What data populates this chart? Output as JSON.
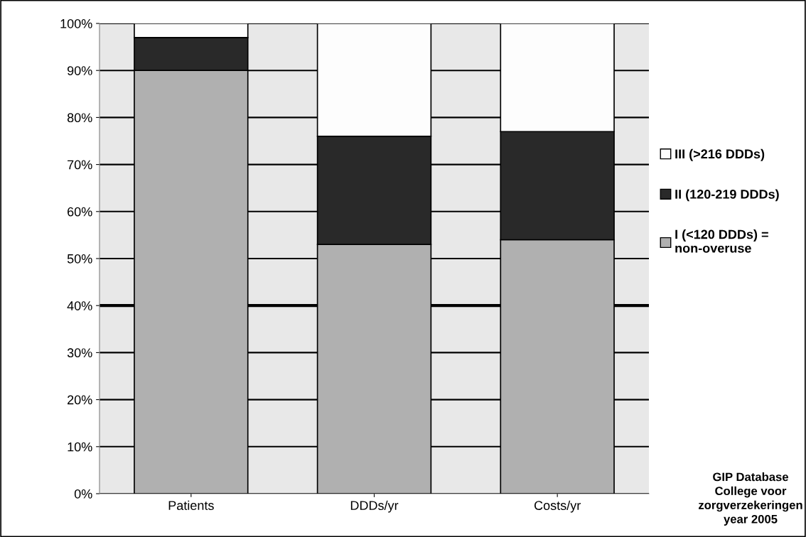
{
  "chart_data": {
    "type": "bar",
    "stacked": true,
    "categories": [
      "Patients",
      "DDDs/yr",
      "Costs/yr"
    ],
    "series": [
      {
        "name": "I (<120 DDDs) =\nnon-overuse",
        "color": "#b0b0b0",
        "values": [
          90,
          53,
          54
        ]
      },
      {
        "name": "II (120-219 DDDs)",
        "color": "#292929",
        "values": [
          7,
          23,
          23
        ]
      },
      {
        "name": "III (>216 DDDs)",
        "color": "#fdfdfd",
        "values": [
          3,
          24,
          23
        ]
      }
    ],
    "ylim": [
      0,
      100
    ],
    "yticks": [
      {
        "value": 0,
        "label": "0%"
      },
      {
        "value": 10,
        "label": "10%"
      },
      {
        "value": 20,
        "label": "20%"
      },
      {
        "value": 30,
        "label": "30%"
      },
      {
        "value": 40,
        "label": "40%"
      },
      {
        "value": 50,
        "label": "50%"
      },
      {
        "value": 60,
        "label": "60%"
      },
      {
        "value": 70,
        "label": "70%"
      },
      {
        "value": 80,
        "label": "80%"
      },
      {
        "value": 90,
        "label": "90%"
      },
      {
        "value": 100,
        "label": "100%"
      }
    ],
    "grid": "y",
    "legend": "right",
    "ref_lines": [
      {
        "axis": "y",
        "value": 40,
        "color": "#000000"
      }
    ],
    "annotations": [
      "GIP Database\nCollege voor\nzorgverzekeringen\nyear 2005"
    ]
  }
}
